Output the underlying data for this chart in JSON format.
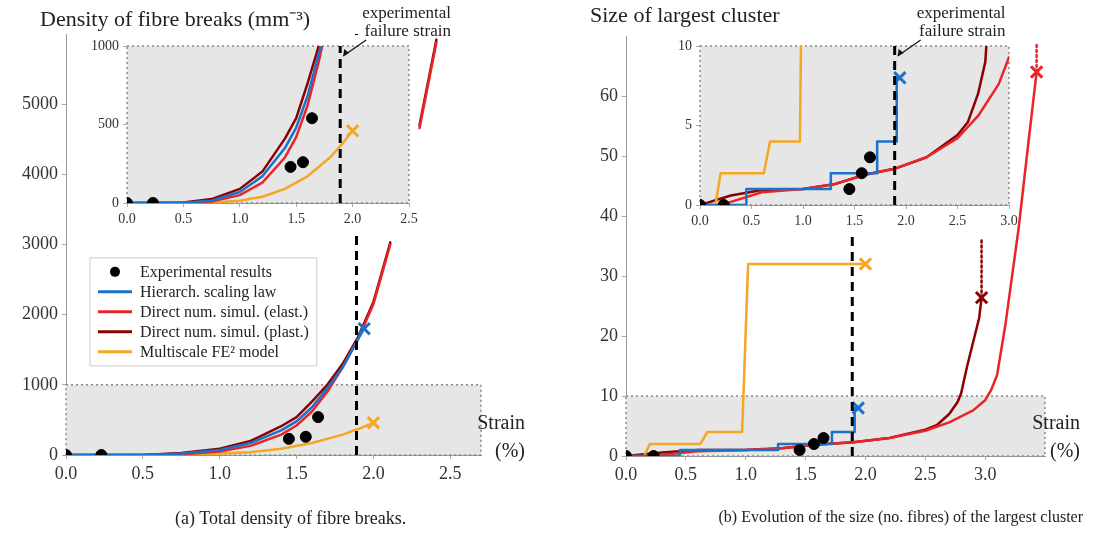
{
  "chart_data": [
    {
      "type": "line",
      "ylabel": "Density of fibre breaks (mm⁻³)",
      "xlabel": "Strain (%)",
      "legend": "left",
      "marker": "none",
      "xlim": [
        0,
        2.7
      ],
      "ylim": [
        0,
        6000
      ],
      "xticks": [
        {
          "value": 0,
          "label": "0.0"
        },
        0.5,
        {
          "value": 1,
          "label": "1.0"
        },
        1.5,
        {
          "value": 2,
          "label": "2.0"
        },
        2.5
      ],
      "yticks": [
        0,
        1000,
        2000,
        3000,
        4000,
        5000
      ],
      "series": [
        {
          "name": "Experimental results",
          "type": "scatter",
          "marker": "circle",
          "color": "#000000",
          "x": [
            0,
            0.23,
            1.45,
            1.56,
            1.64
          ],
          "values": [
            0,
            0,
            230,
            260,
            540
          ]
        },
        {
          "name": "Hierarch. scaling law",
          "color": "#1a73c8",
          "x": [
            0,
            0.5,
            0.75,
            1.0,
            1.2,
            1.4,
            1.5,
            1.6,
            1.7,
            1.8,
            1.9,
            1.94
          ],
          "values": [
            0,
            0,
            20,
            70,
            170,
            350,
            480,
            680,
            950,
            1250,
            1650,
            1800
          ]
        },
        {
          "name": "Direct num. simul. (elast.)",
          "color": "#e8262a",
          "x": [
            0,
            0.5,
            0.75,
            1.0,
            1.2,
            1.4,
            1.5,
            1.6,
            1.7,
            1.8,
            1.9,
            2.0,
            2.11,
            2.2,
            2.3,
            2.41
          ],
          "values": [
            0,
            0,
            10,
            50,
            130,
            290,
            420,
            620,
            900,
            1250,
            1650,
            2150,
            3000,
            null,
            4660,
            5880
          ]
        },
        {
          "name": "Direct num. simul. (plast.)",
          "color": "#8b0000",
          "x": [
            0,
            0.5,
            0.75,
            1.0,
            1.2,
            1.4,
            1.5,
            1.6,
            1.7,
            1.8,
            1.9,
            2.0,
            2.11,
            2.2,
            2.3,
            2.41
          ],
          "values": [
            0,
            0,
            30,
            90,
            200,
            410,
            540,
            760,
            1000,
            1300,
            1680,
            2180,
            3030,
            null,
            4700,
            5920
          ]
        },
        {
          "name": "Multiscale FE² model",
          "color": "#f5a623",
          "x": [
            0,
            0.6,
            0.8,
            1.0,
            1.2,
            1.4,
            1.6,
            1.8,
            1.9,
            2.0
          ],
          "values": [
            0,
            0,
            10,
            20,
            40,
            90,
            170,
            290,
            370,
            460
          ]
        },
        {
          "type": "scatter",
          "marker": "cross",
          "color": "#1a73c8",
          "x": [
            1.94
          ],
          "values": [
            1800
          ]
        },
        {
          "type": "scatter",
          "marker": "cross",
          "color": "#f5a623",
          "x": [
            2.0
          ],
          "values": [
            460
          ]
        }
      ],
      "ref_lines": [
        {
          "axis": "x",
          "value": 1.89,
          "color": "#000000",
          "line_style": "dashed"
        }
      ],
      "bands": [
        {
          "axis": "y",
          "from": 0,
          "to": 1000,
          "color": "#e6e6e6"
        }
      ],
      "annotations": [
        "(a) Total density of fibre breaks."
      ]
    },
    {
      "type": "line",
      "marker": "none",
      "xlim": [
        0,
        2.5
      ],
      "ylim": [
        0,
        1000
      ],
      "xticks": [
        {
          "value": 0,
          "label": "0.0"
        },
        0.5,
        {
          "value": 1,
          "label": "1.0"
        },
        1.5,
        {
          "value": 2,
          "label": "2.0"
        },
        2.5
      ],
      "yticks": [
        0,
        500,
        1000
      ],
      "series": [
        {
          "type": "scatter",
          "marker": "circle",
          "color": "#000000",
          "x": [
            0,
            0.23,
            1.45,
            1.56,
            1.64
          ],
          "values": [
            0,
            0,
            230,
            260,
            540
          ]
        },
        {
          "color": "#1a73c8",
          "x": [
            0,
            0.5,
            0.75,
            1.0,
            1.2,
            1.4,
            1.5,
            1.6,
            1.7,
            1.72
          ],
          "values": [
            0,
            2,
            15,
            70,
            170,
            350,
            480,
            680,
            950,
            1000
          ]
        },
        {
          "color": "#e8262a",
          "x": [
            0,
            0.5,
            0.75,
            1.0,
            1.2,
            1.4,
            1.5,
            1.6,
            1.7,
            1.73
          ],
          "values": [
            0,
            1,
            10,
            50,
            130,
            290,
            420,
            620,
            900,
            1000
          ]
        },
        {
          "color": "#8b0000",
          "x": [
            0,
            0.5,
            0.75,
            1.0,
            1.2,
            1.4,
            1.5,
            1.6,
            1.7
          ],
          "values": [
            0,
            3,
            25,
            90,
            200,
            410,
            540,
            760,
            1000
          ]
        },
        {
          "color": "#f5a623",
          "x": [
            0,
            0.6,
            0.8,
            1.0,
            1.2,
            1.4,
            1.6,
            1.8,
            1.9,
            2.0
          ],
          "values": [
            0,
            1,
            5,
            15,
            40,
            90,
            170,
            290,
            370,
            460
          ]
        },
        {
          "type": "scatter",
          "marker": "cross",
          "color": "#f5a623",
          "x": [
            2.0
          ],
          "values": [
            460
          ]
        }
      ],
      "ref_lines": [
        {
          "axis": "x",
          "value": 1.89,
          "color": "#000000",
          "line_style": "dashed"
        }
      ],
      "bands": [
        {
          "axis": "y",
          "from": 0,
          "to": 1000,
          "color": "#e6e6e6"
        }
      ],
      "annotations": [
        {
          "text": "experimental failure strain",
          "x": 1.89,
          "y": 1000
        }
      ]
    },
    {
      "type": "line",
      "ylabel": "Size of largest cluster",
      "xlabel": "Strain (%)",
      "marker": "none",
      "xlim": [
        0,
        3.5
      ],
      "ylim": [
        0,
        70
      ],
      "xticks": [
        {
          "value": 0,
          "label": "0.0"
        },
        0.5,
        {
          "value": 1,
          "label": "1.0"
        },
        1.5,
        {
          "value": 2,
          "label": "2.0"
        },
        2.5,
        {
          "value": 3,
          "label": "3.0"
        }
      ],
      "yticks": [
        0,
        10,
        20,
        30,
        40,
        50,
        60
      ],
      "series": [
        {
          "type": "scatter",
          "marker": "circle",
          "color": "#000000",
          "x": [
            0,
            0.23,
            1.45,
            1.57,
            1.65
          ],
          "values": [
            0,
            0,
            1,
            2,
            3
          ]
        },
        {
          "type": "step",
          "color": "#1a73c8",
          "x": [
            0,
            0.45,
            1.27,
            1.72,
            1.91,
            1.94
          ],
          "values": [
            0,
            1,
            2,
            4,
            8,
            8
          ]
        },
        {
          "color": "#f5a623",
          "x": [
            0.15,
            0.2,
            0.62,
            0.68,
            0.97,
            1.02,
            2.0
          ],
          "values": [
            0,
            2,
            2,
            4,
            4,
            32,
            32
          ]
        },
        {
          "color": "#e8262a",
          "x": [
            0,
            0.2,
            0.3,
            0.6,
            1.0,
            1.3,
            1.6,
            1.9,
            2.2,
            2.5,
            2.7,
            2.9,
            3.0,
            3.05,
            3.1,
            3.17,
            3.28,
            3.36,
            3.43
          ],
          "values": [
            0,
            0,
            0.2,
            0.8,
            1.0,
            1.3,
            1.9,
            2.3,
            3.0,
            4.2,
            5.6,
            7.6,
            9.3,
            11,
            13.5,
            22,
            38,
            52,
            64
          ]
        },
        {
          "color": "#8b0000",
          "x": [
            0,
            0.3,
            0.6,
            1.0,
            1.3,
            1.6,
            1.9,
            2.2,
            2.5,
            2.6,
            2.7,
            2.77,
            2.8,
            2.85,
            2.9,
            2.95,
            2.97
          ],
          "values": [
            0,
            0.6,
            1.0,
            1.0,
            1.3,
            1.9,
            2.3,
            3.0,
            4.4,
            5.2,
            7,
            9,
            10.5,
            15,
            19,
            23,
            26.4
          ]
        },
        {
          "color": "#e8262a",
          "line_style": "dotted",
          "x": [
            3.43,
            3.43
          ],
          "values": [
            64,
            69
          ]
        },
        {
          "color": "#8b0000",
          "line_style": "dotted",
          "x": [
            2.97,
            2.97
          ],
          "values": [
            26.4,
            36
          ]
        },
        {
          "type": "scatter",
          "marker": "cross",
          "color": "#1a73c8",
          "x": [
            1.94
          ],
          "values": [
            8
          ]
        },
        {
          "type": "scatter",
          "marker": "cross",
          "color": "#f5a623",
          "x": [
            2.0
          ],
          "values": [
            32
          ]
        },
        {
          "type": "scatter",
          "marker": "cross",
          "color": "#e8262a",
          "x": [
            3.43
          ],
          "values": [
            64
          ]
        },
        {
          "type": "scatter",
          "marker": "cross",
          "color": "#8b0000",
          "x": [
            2.97
          ],
          "values": [
            26.4
          ]
        }
      ],
      "ref_lines": [
        {
          "axis": "x",
          "value": 1.89,
          "color": "#000000",
          "line_style": "dashed"
        }
      ],
      "bands": [
        {
          "axis": "y",
          "from": 0,
          "to": 10,
          "color": "#e6e6e6"
        }
      ],
      "annotations": [
        "(b) Evolution of the size (no. fibres) of the largest cluster"
      ]
    },
    {
      "type": "line",
      "marker": "none",
      "xlim": [
        0,
        3
      ],
      "ylim": [
        0,
        10
      ],
      "xticks": [
        {
          "value": 0,
          "label": "0.0"
        },
        0.5,
        {
          "value": 1,
          "label": "1.0"
        },
        1.5,
        {
          "value": 2,
          "label": "2.0"
        },
        2.5,
        {
          "value": 3,
          "label": "3.0"
        }
      ],
      "yticks": [
        0,
        5,
        10
      ],
      "series": [
        {
          "type": "scatter",
          "marker": "circle",
          "color": "#000000",
          "x": [
            0,
            0.23,
            1.45,
            1.57,
            1.65
          ],
          "values": [
            0,
            0,
            1,
            2,
            3
          ]
        },
        {
          "type": "step",
          "color": "#1a73c8",
          "x": [
            0,
            0.45,
            1.27,
            1.72,
            1.91,
            1.94
          ],
          "values": [
            0,
            1,
            2,
            4,
            8,
            8
          ]
        },
        {
          "color": "#f5a623",
          "x": [
            0.15,
            0.2,
            0.62,
            0.68,
            0.97,
            0.98
          ],
          "values": [
            0,
            2,
            2,
            4,
            4,
            10
          ]
        },
        {
          "color": "#e8262a",
          "x": [
            0,
            0.2,
            0.3,
            0.6,
            1.0,
            1.3,
            1.6,
            1.9,
            2.2,
            2.5,
            2.7,
            2.9,
            3.0
          ],
          "values": [
            0,
            0,
            0.2,
            0.8,
            1.0,
            1.3,
            1.9,
            2.3,
            3.0,
            4.2,
            5.6,
            7.6,
            9.3
          ]
        },
        {
          "color": "#8b0000",
          "x": [
            0,
            0.3,
            0.6,
            1.0,
            1.3,
            1.6,
            1.9,
            2.2,
            2.5,
            2.6,
            2.7,
            2.77,
            2.78
          ],
          "values": [
            0,
            0.6,
            0.95,
            1.0,
            1.3,
            1.9,
            2.3,
            3.0,
            4.4,
            5.2,
            7,
            9,
            10
          ]
        },
        {
          "type": "scatter",
          "marker": "cross",
          "color": "#1a73c8",
          "x": [
            1.94
          ],
          "values": [
            8
          ]
        }
      ],
      "ref_lines": [
        {
          "axis": "x",
          "value": 1.89,
          "color": "#000000",
          "line_style": "dashed"
        }
      ],
      "bands": [
        {
          "axis": "y",
          "from": 0,
          "to": 10,
          "color": "#e6e6e6"
        }
      ],
      "annotations": [
        {
          "text": "experimental failure strain",
          "x": 1.89,
          "y": 10
        }
      ]
    }
  ]
}
